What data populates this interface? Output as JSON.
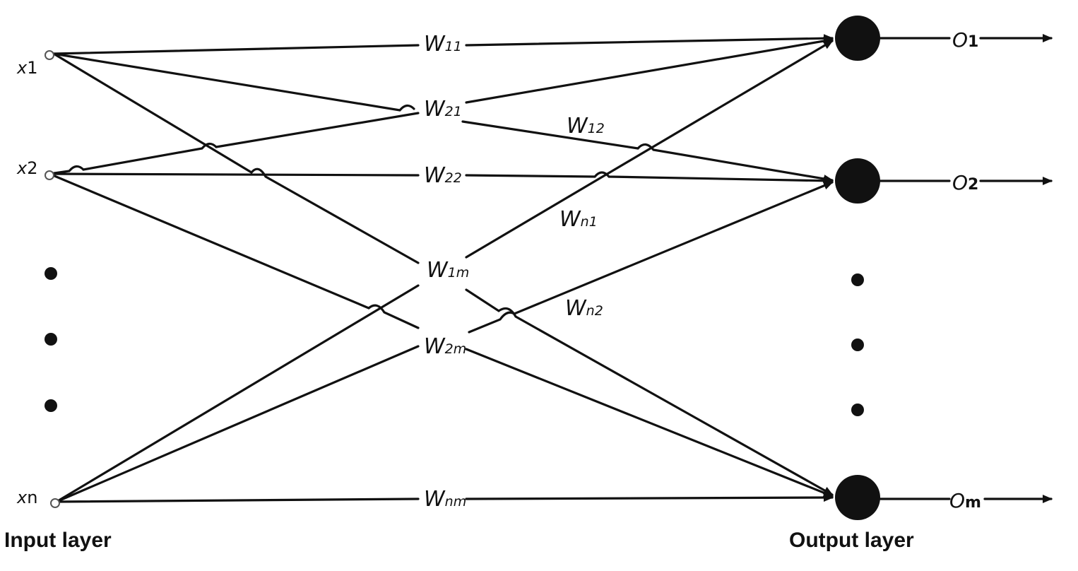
{
  "inputs": [
    {
      "main": "x",
      "sub": "1"
    },
    {
      "main": "x",
      "sub": "2"
    },
    {
      "main": "x",
      "sub": "n"
    }
  ],
  "outputs": [
    {
      "main": "O",
      "sub": "1"
    },
    {
      "main": "O",
      "sub": "2"
    },
    {
      "main": "O",
      "sub": "m"
    }
  ],
  "weights": [
    {
      "main": "W",
      "sub": "11"
    },
    {
      "main": "W",
      "sub": "21"
    },
    {
      "main": "W",
      "sub": "12"
    },
    {
      "main": "W",
      "sub": "22"
    },
    {
      "main": "W",
      "sub": "n1"
    },
    {
      "main": "W",
      "sub": "1m"
    },
    {
      "main": "W",
      "sub": "n2"
    },
    {
      "main": "W",
      "sub": "2m"
    },
    {
      "main": "W",
      "sub": "nm"
    }
  ],
  "layers": {
    "input": "Input layer",
    "output": "Output layer"
  },
  "colors": {
    "ink": "#111111",
    "background": "#ffffff"
  }
}
